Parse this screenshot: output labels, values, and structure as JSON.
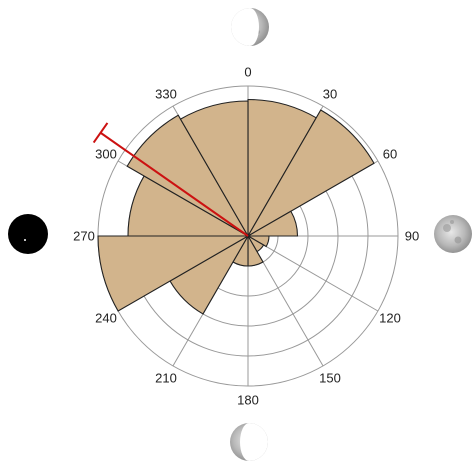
{
  "chart_data": {
    "type": "polar-bar",
    "title": "",
    "angle_direction": "clockwise",
    "zero_direction": "north",
    "radial_max": 1.0,
    "radial_rings": [
      0.2,
      0.4,
      0.6,
      0.8,
      1.0
    ],
    "angular_ticks": [
      "0",
      "30",
      "60",
      "90",
      "120",
      "150",
      "180",
      "210",
      "240",
      "270",
      "300",
      "330"
    ],
    "bin_width_deg": 30,
    "bins": [
      {
        "start": 0,
        "value": 0.91
      },
      {
        "start": 30,
        "value": 0.97
      },
      {
        "start": 60,
        "value": 0.33
      },
      {
        "start": 90,
        "value": 0.14
      },
      {
        "start": 120,
        "value": 0.12
      },
      {
        "start": 150,
        "value": 0.2
      },
      {
        "start": 180,
        "value": 0.2
      },
      {
        "start": 210,
        "value": 0.6
      },
      {
        "start": 240,
        "value": 1.0
      },
      {
        "start": 270,
        "value": 0.8
      },
      {
        "start": 300,
        "value": 0.93
      },
      {
        "start": 330,
        "value": 0.9
      }
    ],
    "mean_direction": {
      "angle": 305,
      "length": 1.2,
      "color": "#cc1111"
    },
    "bar_color": "#d2b48c",
    "bar_edge_color": "#222222",
    "grid_color": "#999999"
  },
  "decorations": {
    "moon_top": "waxing-half-moon-icon",
    "moon_right": "full-moon-icon",
    "moon_bottom": "waning-half-moon-icon",
    "moon_left": "new-moon-icon"
  }
}
